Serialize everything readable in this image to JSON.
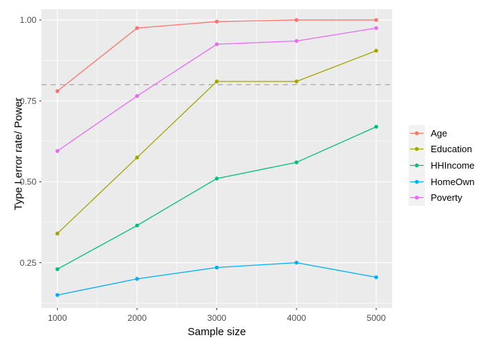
{
  "figure": {
    "background": "#FFFFFF",
    "panel_background": "#EBEBEB",
    "grid_color": "#FFFFFF",
    "tick_color": "#333333",
    "tick_label_color": "#4D4D4D",
    "axis_title_color": "#000000",
    "legend_key_fill": "#F2F2F2"
  },
  "chart_data": {
    "type": "line",
    "title": "",
    "xlabel": "Sample size",
    "ylabel": "Type I error rate/ Power",
    "x": [
      1000,
      2000,
      3000,
      4000,
      5000
    ],
    "x_tick_labels": [
      "1000",
      "2000",
      "3000",
      "4000",
      "5000"
    ],
    "y_tick_values": [
      0.25,
      0.5,
      0.75,
      1.0
    ],
    "y_ticks": [
      "0.25",
      "0.50",
      "0.75",
      "1.00"
    ],
    "x_minor": [
      1500,
      2500,
      3500,
      4500
    ],
    "y_minor": [
      0.125,
      0.375,
      0.625,
      0.875
    ],
    "xlim": [
      800,
      5200
    ],
    "ylim": [
      0.11,
      1.033
    ],
    "grid": "on",
    "legend_position": "right",
    "reference_line": {
      "y": 0.8,
      "style": "dashed",
      "color": "#A9A9A9"
    },
    "series": [
      {
        "name": "Age",
        "color": "#F8766D",
        "values": [
          0.78,
          0.975,
          0.995,
          1.0,
          1.0
        ]
      },
      {
        "name": "Education",
        "color": "#A3A500",
        "values": [
          0.34,
          0.575,
          0.81,
          0.81,
          0.905
        ]
      },
      {
        "name": "HHIncome",
        "color": "#00BF7D",
        "values": [
          0.23,
          0.365,
          0.51,
          0.56,
          0.67
        ]
      },
      {
        "name": "HomeOwn",
        "color": "#00B0F6",
        "values": [
          0.15,
          0.2,
          0.235,
          0.25,
          0.205
        ]
      },
      {
        "name": "Poverty",
        "color": "#E76BF3",
        "values": [
          0.595,
          0.765,
          0.925,
          0.935,
          0.975
        ]
      }
    ]
  }
}
